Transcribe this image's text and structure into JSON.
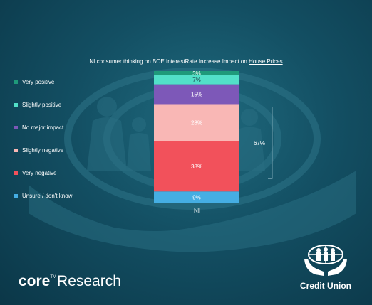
{
  "chart_data": {
    "type": "bar",
    "stacked": true,
    "title_prefix": "NI consumer thinking on BOE InterestRate Increase Impact on ",
    "title_underlined": "House Prices",
    "categories": [
      "NI"
    ],
    "ylim": [
      0,
      100
    ],
    "series": [
      {
        "name": "Unsure / don't know",
        "values": [
          9
        ],
        "label": "9%",
        "color": "#45aee3",
        "label_color": "#ffffff"
      },
      {
        "name": "Very negative",
        "values": [
          38
        ],
        "label": "38%",
        "color": "#f2515b",
        "label_color": "#ffffff"
      },
      {
        "name": "Slightly negative",
        "values": [
          28
        ],
        "label": "28%",
        "color": "#f9b7b5",
        "label_color": "#ffffff"
      },
      {
        "name": "No major impact",
        "values": [
          15
        ],
        "label": "15%",
        "color": "#7d58b8",
        "label_color": "#ffffff"
      },
      {
        "name": "Slightly positive",
        "values": [
          7
        ],
        "label": "7%",
        "color": "#52e0c8",
        "label_color": "#1a3a44"
      },
      {
        "name": "Very positive",
        "values": [
          3
        ],
        "label": "3%",
        "color": "#1f9a7a",
        "label_color": "#ffffff"
      }
    ],
    "legend_order": [
      "Very positive",
      "Slightly positive",
      "No major impact",
      "Slightly negative",
      "Very negative",
      "Unsure / don't know"
    ],
    "legend_position": "left",
    "bracket": {
      "label": "67%",
      "covers": [
        "Very negative",
        "Slightly negative"
      ]
    },
    "grid": false
  },
  "branding": {
    "core_bold": "core",
    "core_tm": "TM",
    "core_rest": "Research",
    "credit_union": "Credit Union"
  },
  "colors": {
    "background": "#134f63",
    "text": "#ffffff"
  }
}
